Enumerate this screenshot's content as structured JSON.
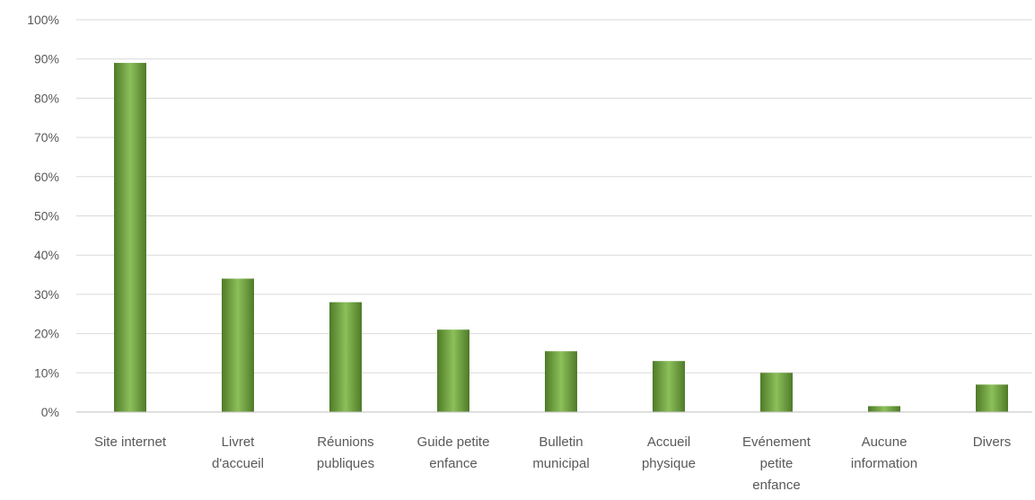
{
  "chart_data": {
    "type": "bar",
    "title": "",
    "xlabel": "",
    "ylabel": "",
    "ylim": [
      0,
      100
    ],
    "y_ticks": [
      0,
      10,
      20,
      30,
      40,
      50,
      60,
      70,
      80,
      90,
      100
    ],
    "y_tick_labels": [
      "0%",
      "10%",
      "20%",
      "30%",
      "40%",
      "50%",
      "60%",
      "70%",
      "80%",
      "90%",
      "100%"
    ],
    "grid": true,
    "legend": "none",
    "categories": [
      [
        "Site internet"
      ],
      [
        "Livret",
        "d'accueil"
      ],
      [
        "Réunions",
        "publiques"
      ],
      [
        "Guide petite",
        "enfance"
      ],
      [
        "Bulletin",
        "municipal"
      ],
      [
        "Accueil",
        "physique"
      ],
      [
        "Evénement",
        "petite",
        "enfance"
      ],
      [
        "Aucune",
        "information"
      ],
      [
        "Divers"
      ]
    ],
    "values": [
      89,
      34,
      28,
      21,
      15.5,
      13,
      10,
      1.5,
      7
    ],
    "bar_color": "#70a040",
    "bar_color_dark": "#4f7a28",
    "bar_color_light": "#8cc05a"
  }
}
